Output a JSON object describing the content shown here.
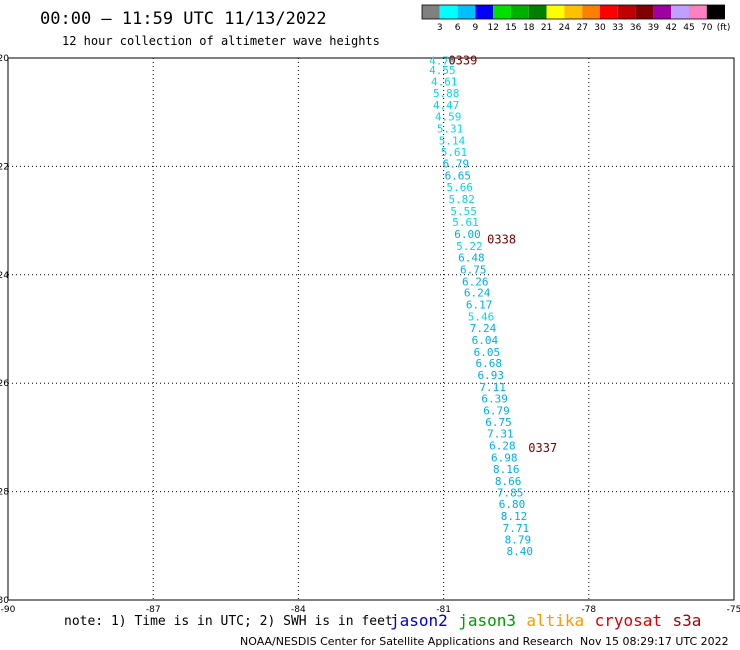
{
  "title": "00:00 — 11:59 UTC 11/13/2022",
  "subtitle": "12 hour collection of altimeter wave heights",
  "color_scale": {
    "labels": [
      "3",
      "6",
      "9",
      "12",
      "15",
      "18",
      "21",
      "24",
      "27",
      "30",
      "33",
      "36",
      "39",
      "42",
      "45",
      "70"
    ],
    "unit": "(ft)",
    "colors": [
      "#808080",
      "#00ffff",
      "#00c0ff",
      "#0000ff",
      "#00e000",
      "#00b000",
      "#008000",
      "#ffff00",
      "#ffc000",
      "#ff8000",
      "#ff0000",
      "#c00000",
      "#800000",
      "#a000a0",
      "#c0a0ff",
      "#ff80c0",
      "#000000"
    ]
  },
  "note": "note: 1) Time is in UTC; 2) SWH is in feet",
  "satellites": [
    {
      "name": "jason2",
      "color": "#0000cc"
    },
    {
      "name": "jason3",
      "color": "#009900"
    },
    {
      "name": "altika",
      "color": "#ff9900"
    },
    {
      "name": "cryosat",
      "color": "#dd0000"
    },
    {
      "name": "s3a",
      "color": "#aa0000"
    }
  ],
  "footer": {
    "credit": "NOAA/NESDIS Center for Satellite Applications and Research",
    "timestamp": "Nov 15 08:29:17 UTC 2022"
  },
  "pass_labels": [
    {
      "text": "0339",
      "lon": -80.9,
      "lat": -20.05
    },
    {
      "text": "0338",
      "lon": -80.1,
      "lat": -23.35
    },
    {
      "text": "0337",
      "lon": -79.25,
      "lat": -27.2
    }
  ],
  "chart_data": {
    "type": "scatter",
    "title": "00:00 — 11:59 UTC 11/13/2022",
    "subtitle": "12 hour collection of altimeter wave heights",
    "xlim": [
      -90,
      -75
    ],
    "ylim": [
      -30,
      -20
    ],
    "x_ticks": [
      "-90",
      "-87",
      "-84",
      "-81",
      "-78",
      "-75"
    ],
    "y_ticks": [
      "-20",
      "-22",
      "-24",
      "-26",
      "-28",
      "-30"
    ],
    "grid": true,
    "points": [
      {
        "lon": -81.3,
        "lat": -20.05,
        "swh": "4.79"
      },
      {
        "lon": -81.3,
        "lat": -20.22,
        "swh": "4.55"
      },
      {
        "lon": -81.26,
        "lat": -20.43,
        "swh": "4.61"
      },
      {
        "lon": -81.22,
        "lat": -20.65,
        "swh": "5.88"
      },
      {
        "lon": -81.22,
        "lat": -20.87,
        "swh": "4.47"
      },
      {
        "lon": -81.18,
        "lat": -21.08,
        "swh": "4.59"
      },
      {
        "lon": -81.14,
        "lat": -21.3,
        "swh": "5.31"
      },
      {
        "lon": -81.1,
        "lat": -21.52,
        "swh": "5.14"
      },
      {
        "lon": -81.06,
        "lat": -21.73,
        "swh": "5.61"
      },
      {
        "lon": -81.02,
        "lat": -21.95,
        "swh": "6.79"
      },
      {
        "lon": -80.98,
        "lat": -22.17,
        "swh": "6.65"
      },
      {
        "lon": -80.94,
        "lat": -22.38,
        "swh": "5.66"
      },
      {
        "lon": -80.9,
        "lat": -22.6,
        "swh": "5.82"
      },
      {
        "lon": -80.86,
        "lat": -22.82,
        "swh": "5.55"
      },
      {
        "lon": -80.82,
        "lat": -23.03,
        "swh": "5.61"
      },
      {
        "lon": -80.78,
        "lat": -23.25,
        "swh": "6.00"
      },
      {
        "lon": -80.74,
        "lat": -23.47,
        "swh": "5.22"
      },
      {
        "lon": -80.7,
        "lat": -23.68,
        "swh": "6.48"
      },
      {
        "lon": -80.66,
        "lat": -23.9,
        "swh": "6.75"
      },
      {
        "lon": -80.62,
        "lat": -24.12,
        "swh": "6.26"
      },
      {
        "lon": -80.58,
        "lat": -24.33,
        "swh": "6.24"
      },
      {
        "lon": -80.54,
        "lat": -24.55,
        "swh": "6.17"
      },
      {
        "lon": -80.5,
        "lat": -24.77,
        "swh": "5.46"
      },
      {
        "lon": -80.46,
        "lat": -24.98,
        "swh": "7.24"
      },
      {
        "lon": -80.42,
        "lat": -25.2,
        "swh": "6.04"
      },
      {
        "lon": -80.38,
        "lat": -25.42,
        "swh": "6.05"
      },
      {
        "lon": -80.34,
        "lat": -25.63,
        "swh": "6.68"
      },
      {
        "lon": -80.3,
        "lat": -25.85,
        "swh": "6.93"
      },
      {
        "lon": -80.26,
        "lat": -26.07,
        "swh": "7.11"
      },
      {
        "lon": -80.22,
        "lat": -26.28,
        "swh": "6.39"
      },
      {
        "lon": -80.18,
        "lat": -26.5,
        "swh": "6.79"
      },
      {
        "lon": -80.14,
        "lat": -26.72,
        "swh": "6.75"
      },
      {
        "lon": -80.1,
        "lat": -26.93,
        "swh": "7.31"
      },
      {
        "lon": -80.06,
        "lat": -27.15,
        "swh": "6.28"
      },
      {
        "lon": -80.02,
        "lat": -27.37,
        "swh": "6.98"
      },
      {
        "lon": -79.98,
        "lat": -27.58,
        "swh": "8.16"
      },
      {
        "lon": -79.94,
        "lat": -27.8,
        "swh": "8.66"
      },
      {
        "lon": -79.9,
        "lat": -28.02,
        "swh": "7.85"
      },
      {
        "lon": -79.86,
        "lat": -28.23,
        "swh": "6.80"
      },
      {
        "lon": -79.82,
        "lat": -28.45,
        "swh": "8.12"
      },
      {
        "lon": -79.78,
        "lat": -28.67,
        "swh": "7.71"
      },
      {
        "lon": -79.74,
        "lat": -28.88,
        "swh": "8.79"
      },
      {
        "lon": -79.7,
        "lat": -29.1,
        "swh": "8.40"
      }
    ]
  }
}
